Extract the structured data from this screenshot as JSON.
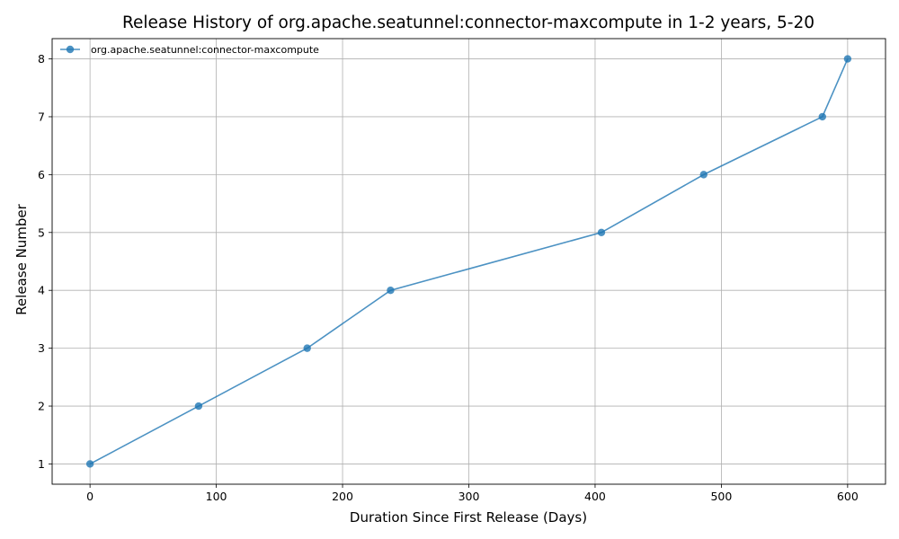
{
  "chart_data": {
    "type": "line",
    "title": "Release History of org.apache.seatunnel:connector-maxcompute in 1-2 years, 5-20",
    "xlabel": "Duration Since First Release (Days)",
    "ylabel": "Release Number",
    "xlim": [
      -30,
      630
    ],
    "ylim": [
      0.65,
      8.35
    ],
    "xticks": [
      0,
      100,
      200,
      300,
      400,
      500,
      600
    ],
    "yticks": [
      1,
      2,
      3,
      4,
      5,
      6,
      7,
      8
    ],
    "grid": true,
    "legend_position": "top-left",
    "series": [
      {
        "name": "org.apache.seatunnel:connector-maxcompute",
        "color": "#1f77b4",
        "marker": "circle",
        "x": [
          0,
          86,
          172,
          238,
          405,
          486,
          580,
          600
        ],
        "y": [
          1,
          2,
          3,
          4,
          5,
          6,
          7,
          8
        ]
      }
    ]
  }
}
